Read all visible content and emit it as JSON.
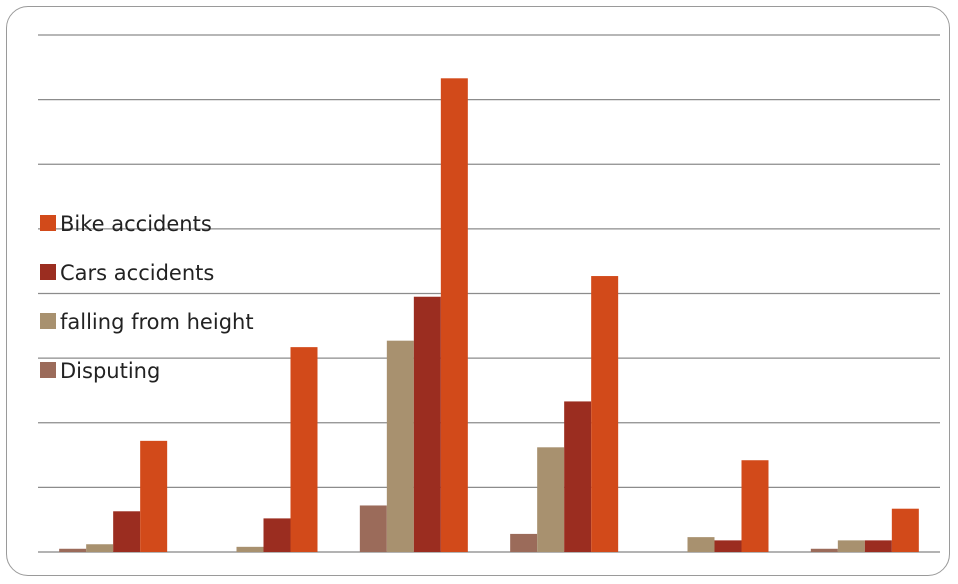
{
  "chart_data": {
    "type": "bar",
    "categories": [
      "",
      "",
      "",
      "",
      "",
      ""
    ],
    "ylim": [
      0,
      8
    ],
    "grid": true,
    "legend_position": "left",
    "series": [
      {
        "name": "Disputing",
        "color": "#9b6b5a",
        "values": [
          0.05,
          0.0,
          0.72,
          0.28,
          0.0,
          0.05
        ]
      },
      {
        "name": "falling from height",
        "color": "#a8916f",
        "values": [
          0.12,
          0.08,
          3.27,
          1.62,
          0.23,
          0.18
        ]
      },
      {
        "name": "Cars accidents",
        "color": "#9b2d20",
        "values": [
          0.63,
          0.52,
          3.95,
          2.33,
          0.18,
          0.18
        ]
      },
      {
        "name": "Bike accidents",
        "color": "#d24a1a",
        "values": [
          1.72,
          3.17,
          7.33,
          4.27,
          1.42,
          0.67
        ]
      }
    ],
    "legend": [
      {
        "label": "Bike accidents",
        "color": "#d24a1a"
      },
      {
        "label": "Cars accidents",
        "color": "#9b2d20"
      },
      {
        "label": "falling from height",
        "color": "#a8916f"
      },
      {
        "label": "Disputing",
        "color": "#9b6b5a"
      }
    ]
  }
}
